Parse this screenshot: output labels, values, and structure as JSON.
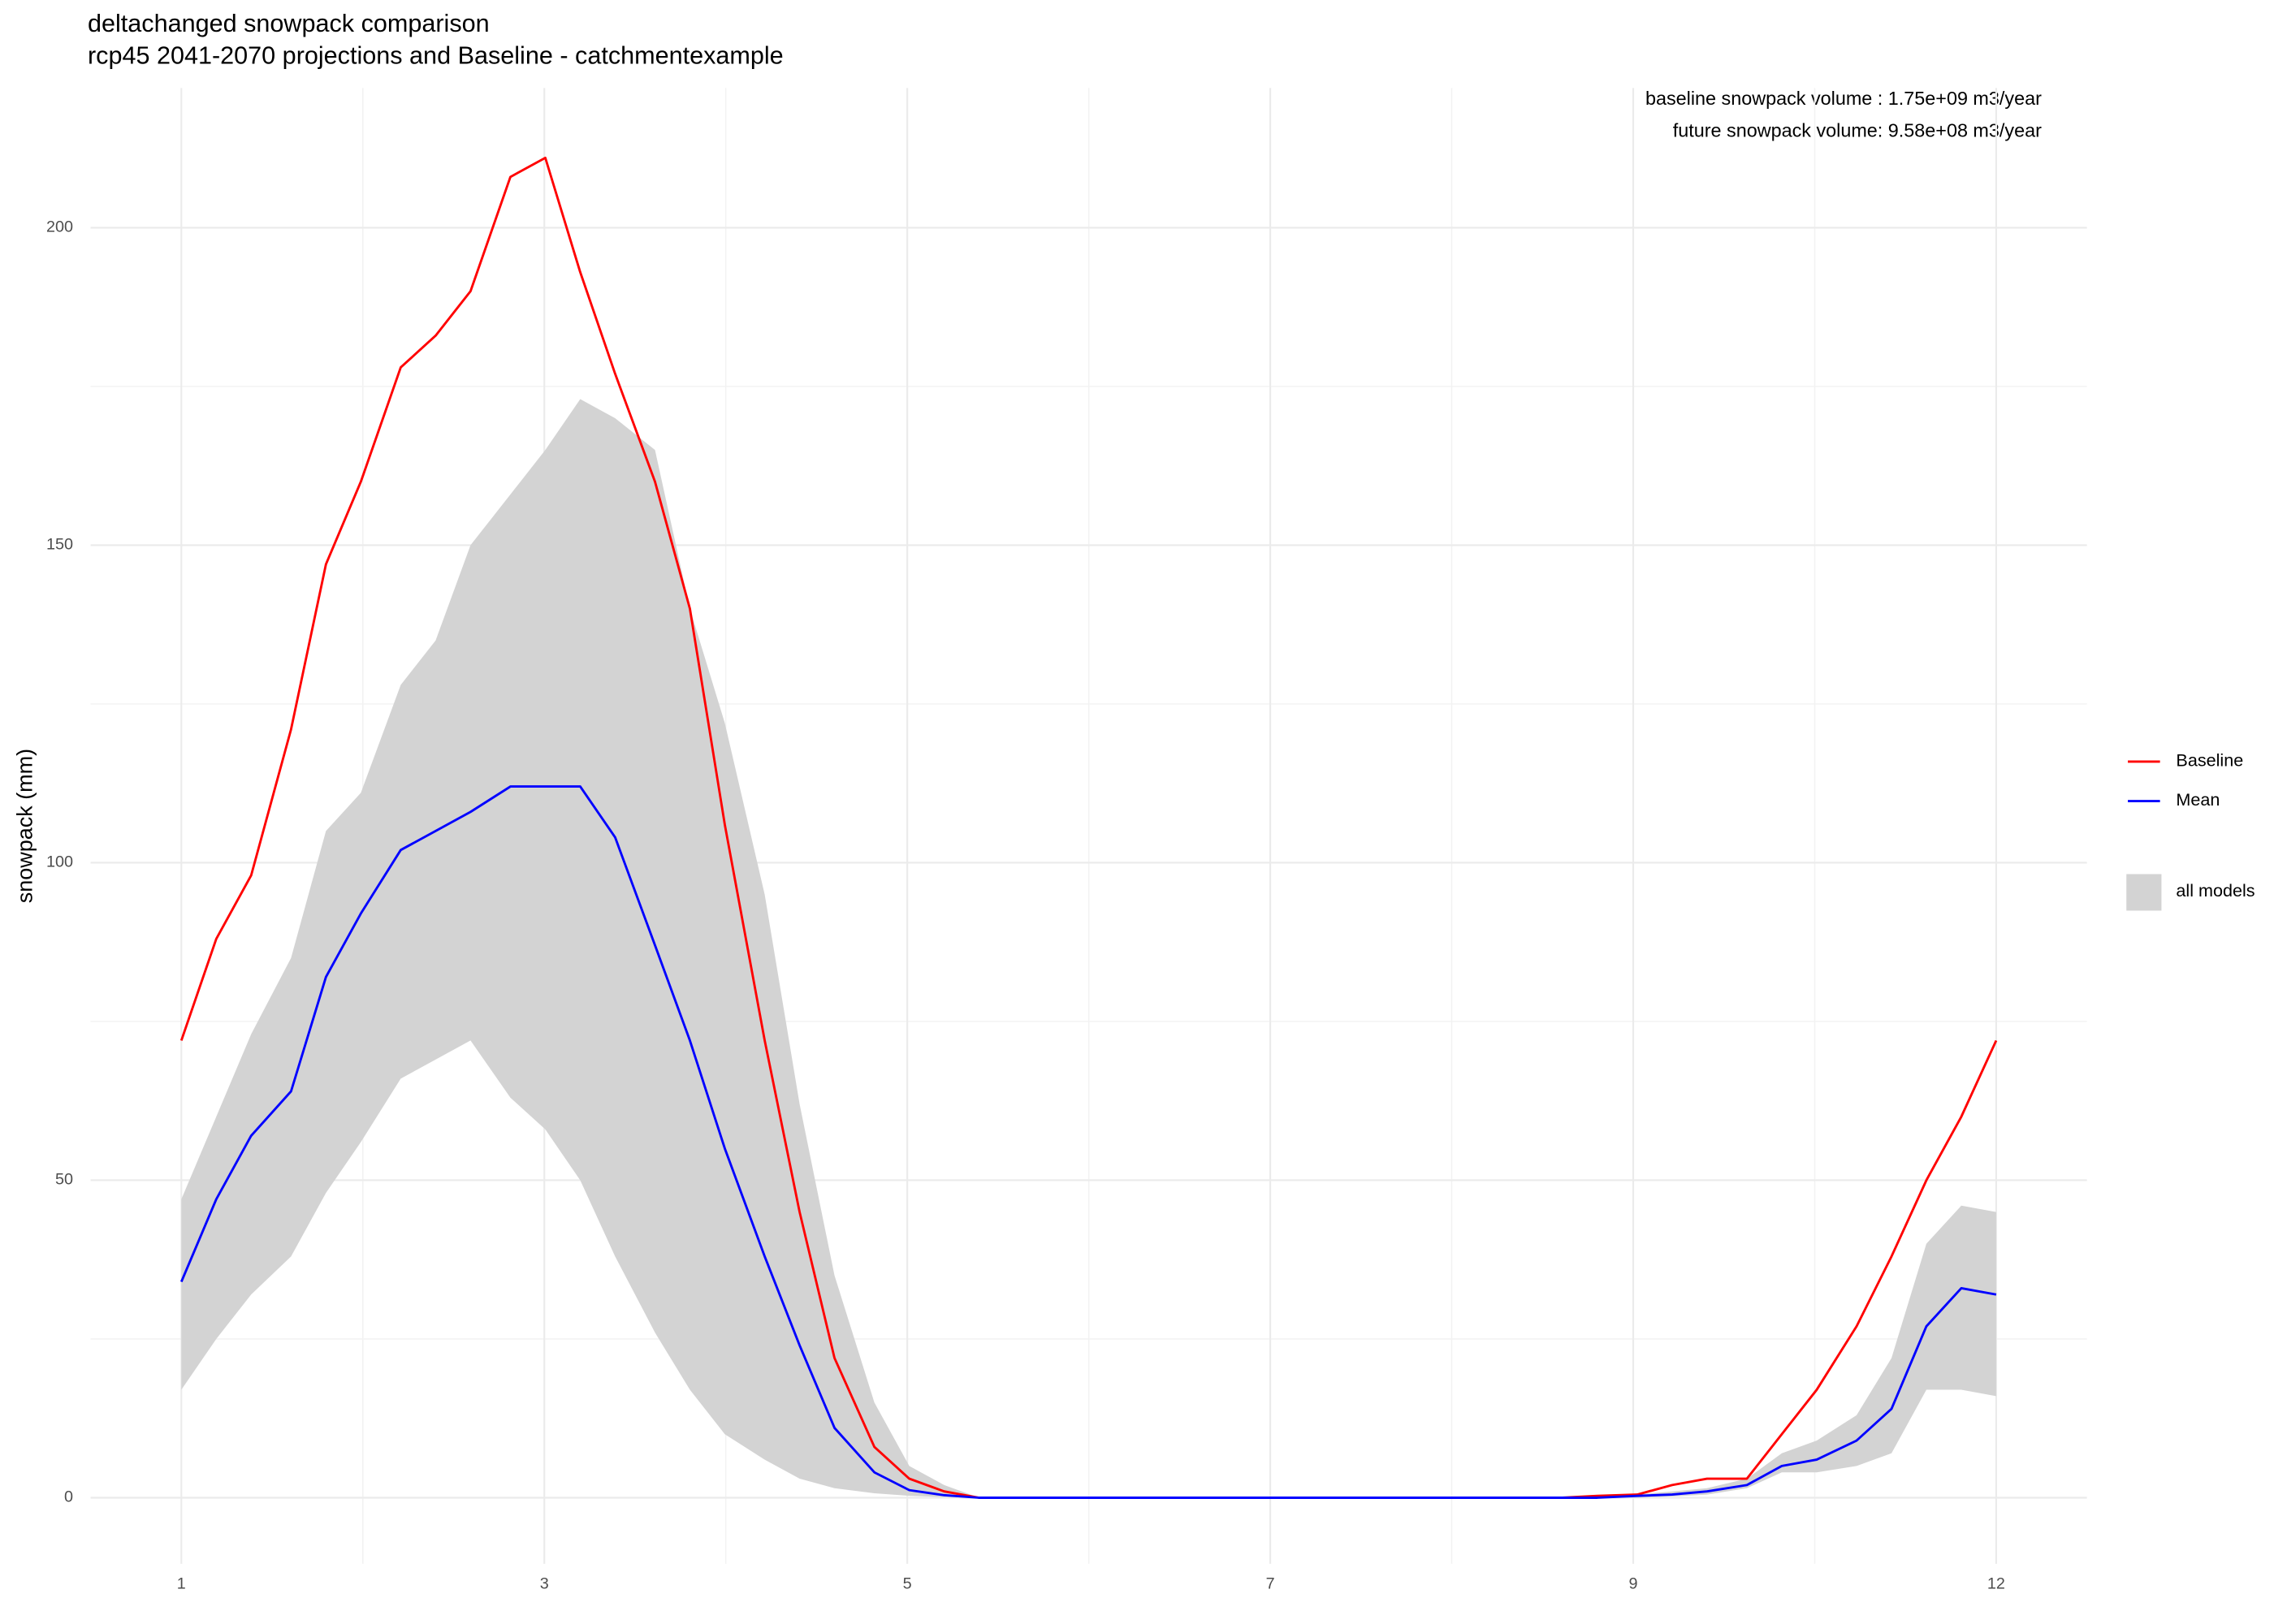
{
  "chart_data": {
    "type": "line",
    "title": "deltachanged snowpack comparison",
    "subtitle": "rcp45 2041-2070 projections and Baseline - catchmentexample",
    "ylabel": "snowpack (mm)",
    "annotations": [
      "baseline snowpack volume : 1.75e+09 m3/year",
      "future snowpack volume: 9.58e+08 m3/year"
    ],
    "x": [
      1,
      8,
      15,
      23,
      30,
      37,
      45,
      52,
      59,
      67,
      74,
      81,
      88,
      96,
      103,
      110,
      118,
      125,
      132,
      140,
      147,
      154,
      161,
      169,
      176,
      183,
      191,
      198,
      205,
      213,
      220,
      227,
      234,
      242,
      249,
      256,
      264,
      271,
      278,
      285,
      293,
      300,
      307,
      315,
      322,
      329,
      337,
      344,
      351,
      358,
      365
    ],
    "series": [
      {
        "name": "Baseline",
        "color": "#ff0000",
        "values": [
          72,
          88,
          98,
          121,
          147,
          160,
          178,
          183,
          190,
          208,
          211,
          193,
          177,
          160,
          140,
          106,
          72,
          45,
          22,
          8,
          3,
          1,
          0,
          0,
          0,
          0,
          0,
          0,
          0,
          0,
          0,
          0,
          0,
          0,
          0,
          0,
          0,
          0,
          0,
          0.3,
          0.5,
          2,
          3,
          3,
          10,
          17,
          27,
          38,
          50,
          60,
          72
        ]
      },
      {
        "name": "Mean",
        "color": "#0000ff",
        "values": [
          34,
          47,
          57,
          64,
          82,
          92,
          102,
          105,
          108,
          112,
          112,
          112,
          104,
          87,
          72,
          55,
          38,
          24,
          11,
          4,
          1.2,
          0.4,
          0,
          0,
          0,
          0,
          0,
          0,
          0,
          0,
          0,
          0,
          0,
          0,
          0,
          0,
          0,
          0,
          0,
          0,
          0.3,
          0.5,
          1,
          2,
          5,
          6,
          9,
          14,
          27,
          33,
          32
        ]
      },
      {
        "name": "all models",
        "color": "#d3d3d3",
        "kind": "ribbon",
        "lower": [
          17,
          25,
          32,
          38,
          48,
          56,
          66,
          69,
          72,
          63,
          58,
          50,
          38,
          26,
          17,
          10,
          6,
          3,
          1.5,
          0.7,
          0.3,
          0.1,
          0,
          0,
          0,
          0,
          0,
          0,
          0,
          0,
          0,
          0,
          0,
          0,
          0,
          0,
          0,
          0,
          0,
          0,
          0,
          0.2,
          0.5,
          1.5,
          4,
          4,
          5,
          7,
          17,
          17,
          16
        ],
        "upper": [
          47,
          60,
          73,
          85,
          105,
          111,
          128,
          135,
          150,
          158,
          165,
          173,
          170,
          165,
          140,
          122,
          95,
          62,
          35,
          15,
          5,
          2,
          0,
          0,
          0,
          0,
          0,
          0,
          0,
          0,
          0,
          0,
          0,
          0,
          0,
          0,
          0,
          0,
          0,
          0.2,
          0.5,
          1,
          1.5,
          3,
          7,
          9,
          13,
          22,
          40,
          46,
          45
        ]
      }
    ],
    "xlim": [
      -17.2,
      383.2
    ],
    "ylim": [
      -10.4,
      222
    ],
    "xticks": [
      {
        "value": 1,
        "label": "1"
      },
      {
        "value": 73.8,
        "label": "3"
      },
      {
        "value": 146.6,
        "label": "5"
      },
      {
        "value": 219.4,
        "label": "7"
      },
      {
        "value": 292.2,
        "label": "9"
      },
      {
        "value": 365,
        "label": "12"
      }
    ],
    "x_minor_ticks": [
      37.4,
      110.2,
      183,
      255.8,
      328.6
    ],
    "yticks": [
      0,
      50,
      100,
      150,
      200
    ],
    "y_minor_ticks": [
      25,
      75,
      125,
      175
    ],
    "grid": true
  }
}
